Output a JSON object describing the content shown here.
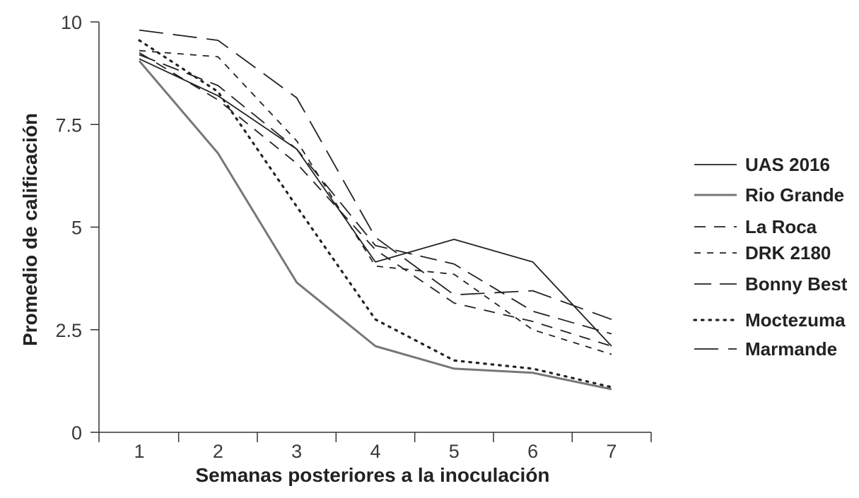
{
  "chart_data": {
    "type": "line",
    "xlabel": "Semanas posteriores a la inoculación",
    "ylabel": "Promedio de calificación",
    "x": [
      1,
      2,
      3,
      4,
      5,
      6,
      7
    ],
    "x_tick_labels": [
      "1",
      "2",
      "3",
      "4",
      "5",
      "6",
      "7"
    ],
    "ylim": [
      0,
      10
    ],
    "y_ticks": [
      0,
      2.5,
      5,
      7.5,
      10
    ],
    "y_tick_labels": [
      "0",
      "2.5",
      "5",
      "7.5",
      "10"
    ],
    "grid": false,
    "legend_position": "right",
    "series": [
      {
        "name": "UAS 2016",
        "values": [
          9.1,
          8.2,
          6.9,
          4.15,
          4.7,
          4.15,
          2.1
        ],
        "color": "#222222",
        "style": "solid"
      },
      {
        "name": "Rio Grande",
        "values": [
          9.05,
          6.8,
          3.65,
          2.1,
          1.55,
          1.45,
          1.05
        ],
        "color": "#777777",
        "style": "solid"
      },
      {
        "name": "La Roca",
        "values": [
          9.25,
          8.1,
          6.55,
          4.45,
          3.15,
          2.7,
          2.1
        ],
        "color": "#222222",
        "style": "dash-medium"
      },
      {
        "name": "DRK 2180",
        "values": [
          9.3,
          9.15,
          7.1,
          4.05,
          3.85,
          2.5,
          1.9
        ],
        "color": "#222222",
        "style": "dash-short"
      },
      {
        "name": "Bonny Best",
        "values": [
          9.2,
          8.45,
          6.9,
          4.55,
          4.1,
          2.95,
          2.4
        ],
        "color": "#222222",
        "style": "dash-long"
      },
      {
        "name": "Moctezuma",
        "values": [
          9.55,
          8.3,
          5.5,
          2.75,
          1.75,
          1.55,
          1.1
        ],
        "color": "#222222",
        "style": "dotted"
      },
      {
        "name": "Marmande",
        "values": [
          9.8,
          9.55,
          8.15,
          4.75,
          3.35,
          3.45,
          2.75
        ],
        "color": "#222222",
        "style": "dash-longest"
      }
    ]
  }
}
